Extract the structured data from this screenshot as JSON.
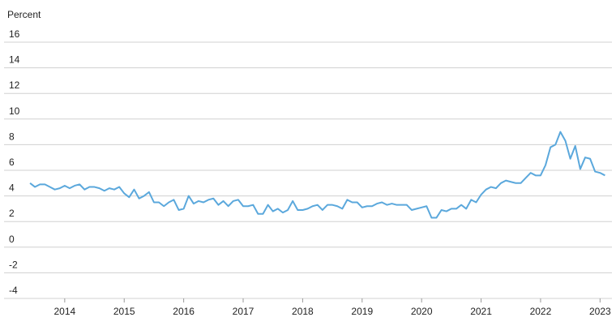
{
  "chart_data": {
    "type": "line",
    "y_label": "Percent",
    "x": [
      2013.417,
      2013.5,
      2013.583,
      2013.667,
      2013.75,
      2013.833,
      2013.917,
      2014,
      2014.083,
      2014.167,
      2014.25,
      2014.333,
      2014.417,
      2014.5,
      2014.583,
      2014.667,
      2014.75,
      2014.833,
      2014.917,
      2015,
      2015.083,
      2015.167,
      2015.25,
      2015.333,
      2015.417,
      2015.5,
      2015.583,
      2015.667,
      2015.75,
      2015.833,
      2015.917,
      2016,
      2016.083,
      2016.167,
      2016.25,
      2016.333,
      2016.417,
      2016.5,
      2016.583,
      2016.667,
      2016.75,
      2016.833,
      2016.917,
      2017,
      2017.083,
      2017.167,
      2017.25,
      2017.333,
      2017.417,
      2017.5,
      2017.583,
      2017.667,
      2017.75,
      2017.833,
      2017.917,
      2018,
      2018.083,
      2018.167,
      2018.25,
      2018.333,
      2018.417,
      2018.5,
      2018.583,
      2018.667,
      2018.75,
      2018.833,
      2018.917,
      2019,
      2019.083,
      2019.167,
      2019.25,
      2019.333,
      2019.417,
      2019.5,
      2019.583,
      2019.667,
      2019.75,
      2019.833,
      2019.917,
      2020,
      2020.083,
      2020.167,
      2020.25,
      2020.333,
      2020.417,
      2020.5,
      2020.583,
      2020.667,
      2020.75,
      2020.833,
      2020.917,
      2021,
      2021.083,
      2021.167,
      2021.25,
      2021.333,
      2021.417,
      2021.5,
      2021.583,
      2021.667,
      2021.75,
      2021.833,
      2021.917,
      2022,
      2022.083,
      2022.167,
      2022.25,
      2022.333,
      2022.417,
      2022.5,
      2022.583,
      2022.667,
      2022.75,
      2022.833,
      2022.917,
      2023,
      2023.083
    ],
    "series": [
      {
        "color": "#5ba8dc",
        "values": [
          5.0,
          4.7,
          4.9,
          4.9,
          4.7,
          4.5,
          4.6,
          4.8,
          4.6,
          4.8,
          4.9,
          4.5,
          4.7,
          4.7,
          4.6,
          4.4,
          4.6,
          4.5,
          4.7,
          4.2,
          3.9,
          4.5,
          3.8,
          4.0,
          4.3,
          3.5,
          3.5,
          3.2,
          3.5,
          3.7,
          2.9,
          3.0,
          4.0,
          3.4,
          3.6,
          3.5,
          3.7,
          3.8,
          3.3,
          3.6,
          3.2,
          3.6,
          3.7,
          3.2,
          3.2,
          3.3,
          2.6,
          2.6,
          3.3,
          2.8,
          3.0,
          2.7,
          2.9,
          3.6,
          2.9,
          2.9,
          3.0,
          3.2,
          3.3,
          2.9,
          3.3,
          3.3,
          3.2,
          3.0,
          3.7,
          3.5,
          3.5,
          3.1,
          3.2,
          3.2,
          3.4,
          3.5,
          3.3,
          3.4,
          3.3,
          3.3,
          3.3,
          2.9,
          3.0,
          3.1,
          3.2,
          2.3,
          2.3,
          2.9,
          2.8,
          3.0,
          3.0,
          3.3,
          3.0,
          3.7,
          3.5,
          4.1,
          4.5,
          4.7,
          4.6,
          5.0,
          5.2,
          5.1,
          5.0,
          5.0,
          5.4,
          5.8,
          5.6,
          5.6,
          6.4,
          7.8,
          8.0,
          9.0,
          8.3,
          6.9,
          7.9,
          6.1,
          7.0,
          6.9,
          5.9,
          5.8,
          5.6
        ]
      }
    ],
    "xlim": [
      2012.98,
      2023.2
    ],
    "xticks": [
      2014,
      2015,
      2016,
      2017,
      2018,
      2019,
      2020,
      2021,
      2022,
      2023
    ],
    "ylim": [
      -4,
      16
    ],
    "yticks": [
      16,
      14,
      12,
      10,
      8,
      6,
      4,
      2,
      0,
      -2,
      -4
    ],
    "grid": true
  }
}
